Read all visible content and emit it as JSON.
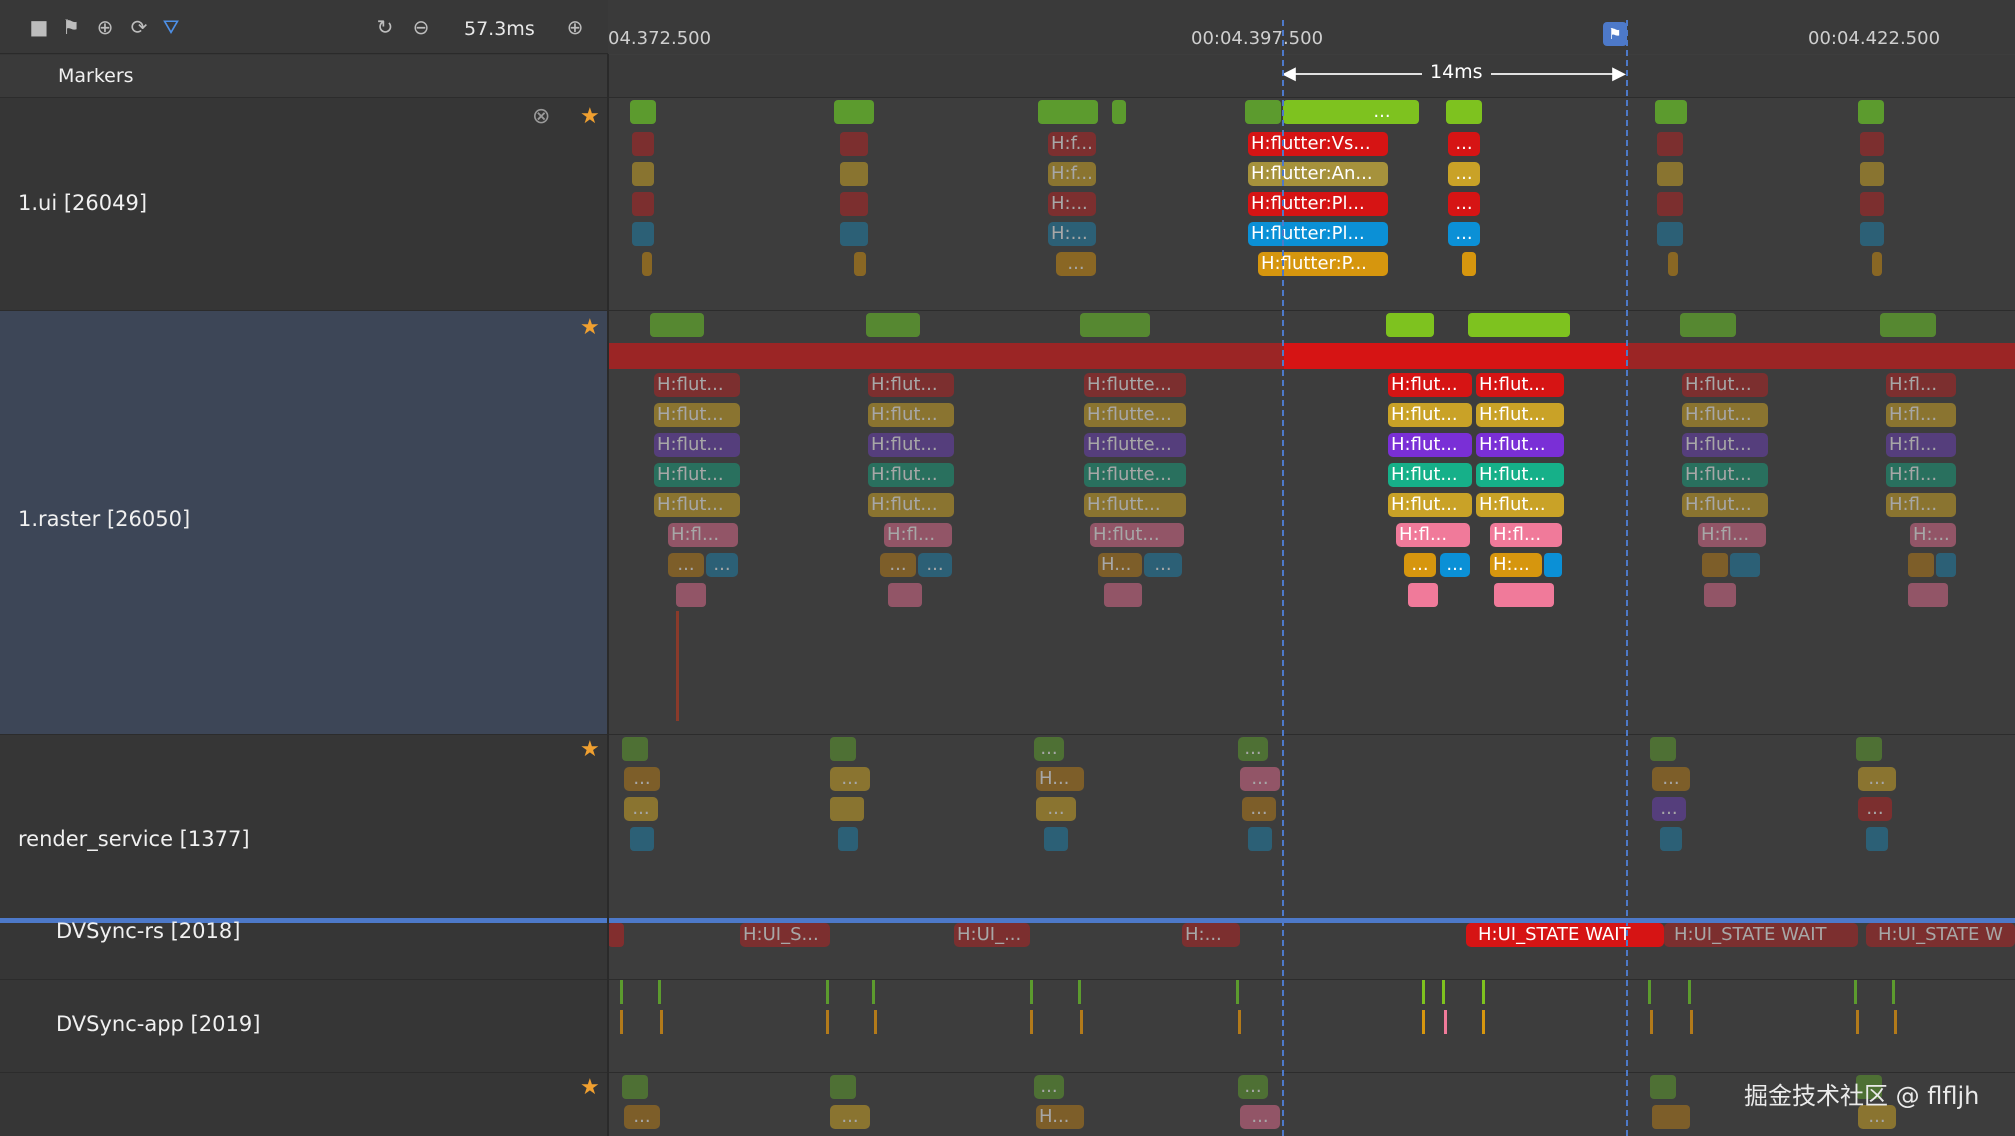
{
  "toolbar": {
    "zoom_value": "57.3ms",
    "icons": [
      "stop-icon",
      "flag-icon",
      "add-circle-icon",
      "snapshot-icon",
      "filter-icon",
      "refresh-icon",
      "zoom-out-icon",
      "zoom-in-icon"
    ]
  },
  "timeline": {
    "ticks": [
      "04.372.500",
      "00:04.397.500",
      "00:04.422.500"
    ],
    "range_label": "14ms"
  },
  "rows": {
    "markers": "Markers",
    "ui": "1.ui [26049]",
    "raster": "1.raster [26050]",
    "render_service": "render_service [1377]",
    "dvsync_rs": "DVSync-rs [2018]",
    "dvsync_app": "DVSync-app [2019]"
  },
  "ui_slices": {
    "sel1": "H:flutter:Vs...",
    "sel2": "H:flutter:An...",
    "sel3": "H:flutter:Pl...",
    "sel4": "H:flutter:Pl...",
    "sel5": "H:flutter:P...",
    "g3_1": "H:f...",
    "g3_2": "H:f...",
    "g3_3": "H:...",
    "g3_4": "H:...",
    "ellipsis": "...",
    "top_ellipsis": "..."
  },
  "raster_slices": {
    "a1": "H:flut...",
    "a2": "H:flut...",
    "a3": "H:flut...",
    "a4": "H:flut...",
    "a5": "H:flut...",
    "a6": "H:fl...",
    "b1": "H:flut...",
    "b2": "H:flut...",
    "b3": "H:flut...",
    "b4": "H:flut...",
    "b5": "H:flut...",
    "b6": "H:fl...",
    "c1": "H:flutte...",
    "c2": "H:flutte...",
    "c3": "H:flutte...",
    "c4": "H:flutte...",
    "c5": "H:flutt...",
    "c6": "H:flut...",
    "d1": "H:flut...",
    "d2": "H:flut...",
    "d3": "H:flut...",
    "d4": "H:flut...",
    "d5": "H:flut...",
    "d6": "H:fl...",
    "e1": "H:flut...",
    "e2": "H:flut...",
    "e3": "H:flut...",
    "e4": "H:flut...",
    "e5": "H:flut...",
    "e6": "H:fl...",
    "f1": "H:flut...",
    "f2": "H:flut...",
    "f3": "H:flut...",
    "f4": "H:flut...",
    "f5": "H:flut...",
    "f6": "H:fl...",
    "g1": "H:fl...",
    "g2": "H:fl...",
    "g3": "H:fl...",
    "g4": "H:fl...",
    "g5": "H:fl...",
    "g6": "H:...",
    "c7": "H...",
    "e7": "H:...",
    "ell": "..."
  },
  "rs_slices": {
    "h1": "H...",
    "ell": "..."
  },
  "dvsync_rs_slices": {
    "s1": "H:UI_S...",
    "s2": "H:UI_...",
    "s3": "H:...",
    "s4": "H:UI_STATE WAIT",
    "s5": "H:UI_STATE WAIT",
    "s6": "H:UI_STATE W"
  },
  "bottom_slices": {
    "ell": "...",
    "h": "H..."
  },
  "watermark": "掘金技术社区 @ flfljh",
  "colors": {
    "green": "#5c9b2e",
    "bright_green": "#7ec21f",
    "red": "#b02424",
    "bright_red": "#d61414",
    "olive": "#8f8a3c",
    "gold": "#c9a227",
    "blue": "#1f7ea6",
    "bright_blue": "#0b90d6",
    "orange": "#b37a1a",
    "purple": "#6a3fb0",
    "teal": "#1a9b7a",
    "pink": "#d86a8a",
    "selection_blue": "#4d79c9",
    "raster_bg": "#3d4657"
  }
}
